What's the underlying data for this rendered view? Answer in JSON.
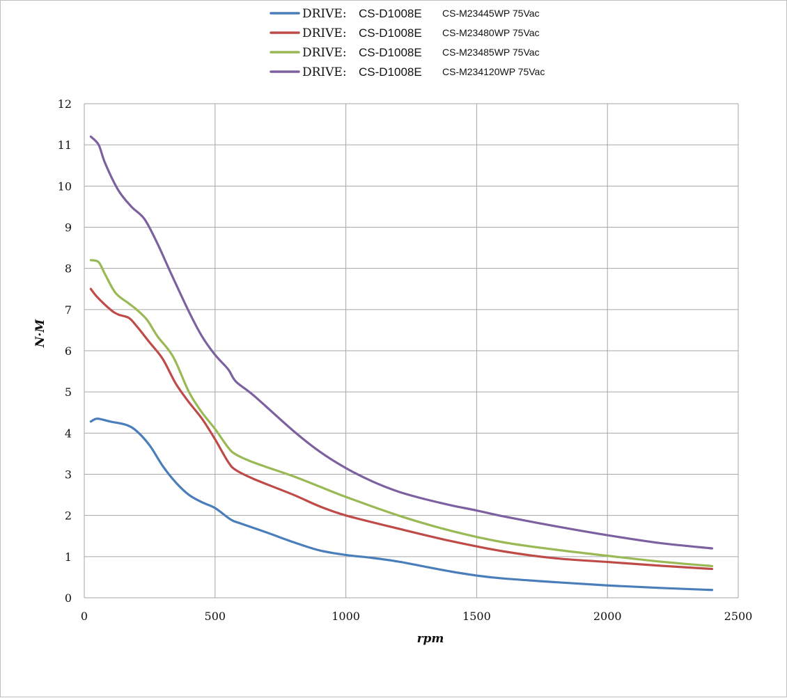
{
  "chart_data": {
    "type": "line",
    "title": "",
    "xlabel": "rpm",
    "ylabel": "N·M",
    "xlim": [
      0,
      2500
    ],
    "ylim": [
      0,
      12
    ],
    "x_ticks": [
      "0",
      "500",
      "1000",
      "1500",
      "2000",
      "2500"
    ],
    "y_ticks": [
      "0",
      "1",
      "2",
      "3",
      "4",
      "5",
      "6",
      "7",
      "8",
      "9",
      "10",
      "11",
      "12"
    ],
    "grid": true,
    "legend_position": "top-center",
    "series": [
      {
        "name": "DRIVE: CS-D1008E CS-M23445WP 75Vac",
        "legend_drive": "DRIVE:",
        "legend_code": "CS-D1008E",
        "legend_model": "CS-M23445WP  75Vac",
        "color": "#4a7ebb",
        "points": [
          [
            25,
            4.28
          ],
          [
            50,
            4.35
          ],
          [
            100,
            4.28
          ],
          [
            160,
            4.2
          ],
          [
            200,
            4.05
          ],
          [
            250,
            3.7
          ],
          [
            300,
            3.2
          ],
          [
            350,
            2.8
          ],
          [
            400,
            2.5
          ],
          [
            450,
            2.32
          ],
          [
            500,
            2.18
          ],
          [
            560,
            1.9
          ],
          [
            600,
            1.8
          ],
          [
            700,
            1.58
          ],
          [
            800,
            1.35
          ],
          [
            900,
            1.15
          ],
          [
            1000,
            1.04
          ],
          [
            1100,
            0.97
          ],
          [
            1200,
            0.88
          ],
          [
            1300,
            0.76
          ],
          [
            1400,
            0.64
          ],
          [
            1500,
            0.54
          ],
          [
            1600,
            0.47
          ],
          [
            1800,
            0.38
          ],
          [
            2000,
            0.3
          ],
          [
            2200,
            0.24
          ],
          [
            2400,
            0.19
          ]
        ]
      },
      {
        "name": "DRIVE: CS-D1008E CS-M23480WP 75Vac",
        "legend_drive": "DRIVE:",
        "legend_code": "CS-D1008E",
        "legend_model": "CS-M23480WP  75Vac",
        "color": "#be4b48",
        "points": [
          [
            25,
            7.5
          ],
          [
            50,
            7.3
          ],
          [
            100,
            7.0
          ],
          [
            130,
            6.88
          ],
          [
            170,
            6.8
          ],
          [
            200,
            6.6
          ],
          [
            250,
            6.2
          ],
          [
            300,
            5.8
          ],
          [
            350,
            5.2
          ],
          [
            400,
            4.75
          ],
          [
            450,
            4.35
          ],
          [
            500,
            3.85
          ],
          [
            550,
            3.3
          ],
          [
            580,
            3.1
          ],
          [
            650,
            2.88
          ],
          [
            800,
            2.5
          ],
          [
            900,
            2.22
          ],
          [
            1000,
            2.0
          ],
          [
            1200,
            1.68
          ],
          [
            1400,
            1.38
          ],
          [
            1600,
            1.13
          ],
          [
            1800,
            0.96
          ],
          [
            2000,
            0.87
          ],
          [
            2200,
            0.78
          ],
          [
            2400,
            0.7
          ]
        ]
      },
      {
        "name": "DRIVE: CS-D1008E CS-M23485WP 75Vac",
        "legend_drive": "DRIVE:",
        "legend_code": "CS-D1008E",
        "legend_model": "CS-M23485WP  75Vac",
        "color": "#98b954",
        "points": [
          [
            25,
            8.2
          ],
          [
            55,
            8.15
          ],
          [
            80,
            7.85
          ],
          [
            120,
            7.4
          ],
          [
            170,
            7.15
          ],
          [
            200,
            7.0
          ],
          [
            240,
            6.75
          ],
          [
            280,
            6.35
          ],
          [
            340,
            5.85
          ],
          [
            400,
            5.0
          ],
          [
            450,
            4.5
          ],
          [
            500,
            4.1
          ],
          [
            550,
            3.65
          ],
          [
            580,
            3.48
          ],
          [
            650,
            3.28
          ],
          [
            800,
            2.95
          ],
          [
            900,
            2.7
          ],
          [
            1000,
            2.45
          ],
          [
            1200,
            2.0
          ],
          [
            1400,
            1.63
          ],
          [
            1600,
            1.35
          ],
          [
            1800,
            1.17
          ],
          [
            2000,
            1.02
          ],
          [
            2200,
            0.88
          ],
          [
            2400,
            0.77
          ]
        ]
      },
      {
        "name": "DRIVE: CS-D1008E CS-M234120WP 75Vac",
        "legend_drive": "DRIVE:",
        "legend_code": "CS-D1008E",
        "legend_model": "CS-M234120WP  75Vac",
        "color": "#7d60a0",
        "points": [
          [
            25,
            11.2
          ],
          [
            55,
            11.0
          ],
          [
            80,
            10.55
          ],
          [
            130,
            9.9
          ],
          [
            180,
            9.5
          ],
          [
            230,
            9.2
          ],
          [
            280,
            8.6
          ],
          [
            330,
            7.9
          ],
          [
            400,
            6.95
          ],
          [
            450,
            6.35
          ],
          [
            500,
            5.9
          ],
          [
            550,
            5.55
          ],
          [
            580,
            5.25
          ],
          [
            650,
            4.9
          ],
          [
            800,
            4.05
          ],
          [
            900,
            3.55
          ],
          [
            1000,
            3.15
          ],
          [
            1100,
            2.83
          ],
          [
            1200,
            2.58
          ],
          [
            1300,
            2.4
          ],
          [
            1400,
            2.25
          ],
          [
            1500,
            2.12
          ],
          [
            1600,
            1.98
          ],
          [
            1800,
            1.74
          ],
          [
            2000,
            1.52
          ],
          [
            2200,
            1.33
          ],
          [
            2400,
            1.2
          ]
        ]
      }
    ]
  }
}
